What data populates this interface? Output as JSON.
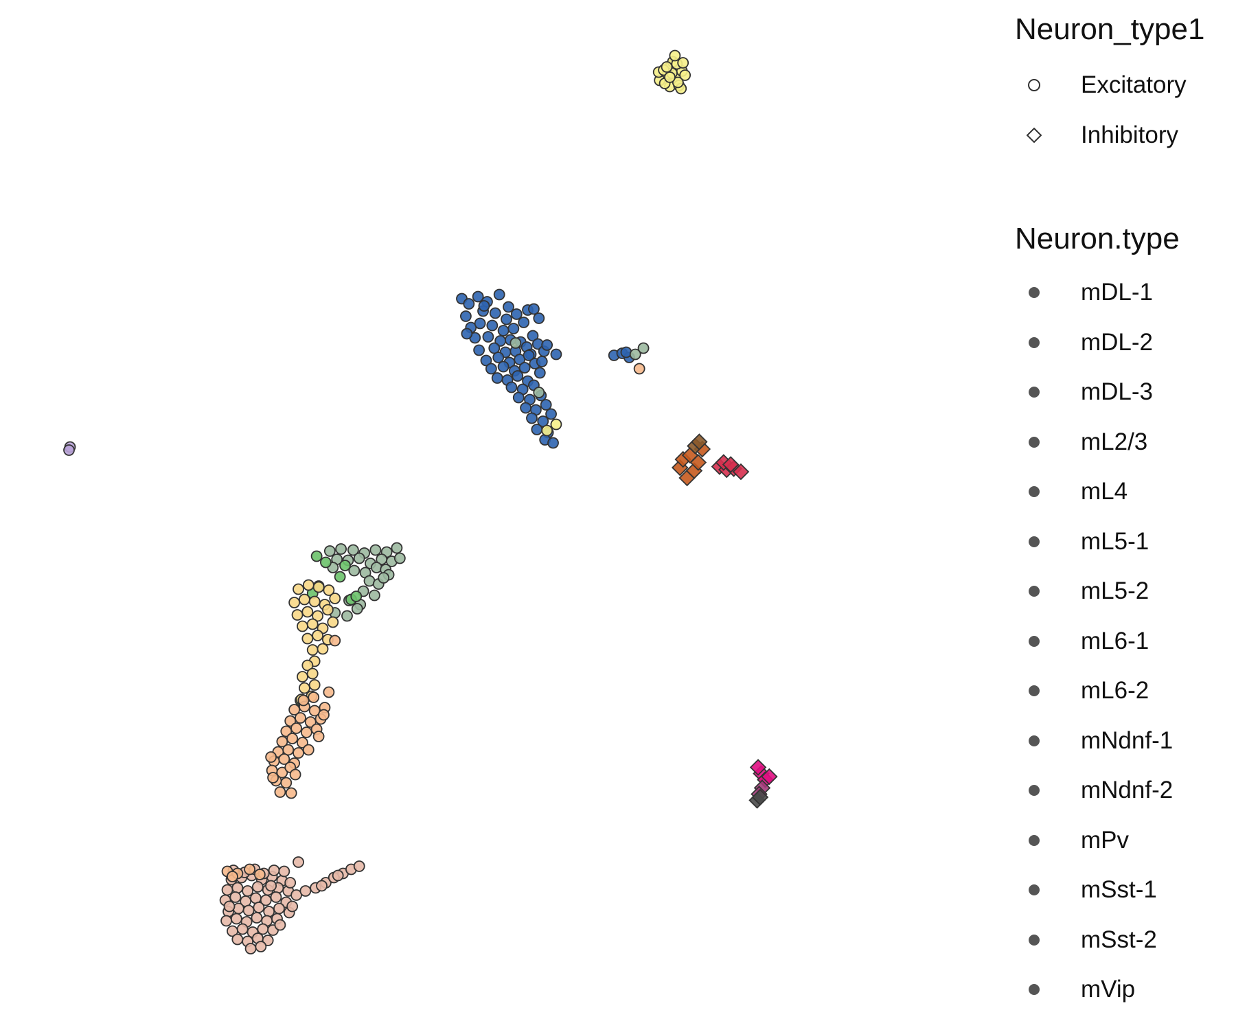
{
  "chart_data": {
    "type": "scatter",
    "title": "",
    "xlabel": "",
    "ylabel": "",
    "grid": false,
    "axes_visible": false,
    "xlim": [
      0,
      100
    ],
    "ylim": [
      0,
      100
    ],
    "legend_placement": "right",
    "point_outline_color": "#333333",
    "legend_shape": {
      "title": "Neuron_type1",
      "entries": [
        {
          "label": "Excitatory",
          "shape": "circle"
        },
        {
          "label": "Inhibitory",
          "shape": "diamond"
        }
      ]
    },
    "legend_color": {
      "title": "Neuron.type",
      "legend_key_color": "#555555",
      "entries": [
        {
          "label": "mDL-1"
        },
        {
          "label": "mDL-2"
        },
        {
          "label": "mDL-3"
        },
        {
          "label": "mL2/3"
        },
        {
          "label": "mL4"
        },
        {
          "label": "mL5-1"
        },
        {
          "label": "mL5-2"
        },
        {
          "label": "mL6-1"
        },
        {
          "label": "mL6-2"
        },
        {
          "label": "mNdnf-1"
        },
        {
          "label": "mNdnf-2"
        },
        {
          "label": "mPv"
        },
        {
          "label": "mSst-1"
        },
        {
          "label": "mSst-2"
        },
        {
          "label": "mVip"
        }
      ]
    },
    "series": [
      {
        "type": "Excitatory",
        "shape": "circle",
        "color": "#f6f08a",
        "x": [
          66.1,
          65.0,
          66.6,
          67.2,
          66.0,
          65.5,
          66.9,
          67.5,
          64.9,
          66.3,
          65.8,
          66.7,
          66.2,
          65.4,
          67.1,
          66.5,
          65.7,
          66.8,
          67.3,
          66.0
        ],
        "y": [
          93.6,
          92.2,
          92.4,
          93.1,
          91.6,
          91.9,
          91.7,
          92.7,
          93.0,
          94.0,
          92.8,
          93.8,
          92.9,
          93.2,
          91.4,
          94.6,
          93.5,
          92.0,
          93.9,
          92.5
        ]
      },
      {
        "type": "Excitatory",
        "shape": "circle",
        "color": "#2e64b0",
        "x": [
          45.5,
          46.2,
          47.1,
          48.0,
          49.2,
          50.1,
          45.9,
          47.6,
          48.8,
          49.9,
          50.9,
          52.0,
          46.4,
          47.3,
          48.5,
          49.6,
          50.6,
          51.6,
          46.8,
          48.1,
          49.3,
          50.3,
          51.3,
          52.5,
          47.2,
          48.7,
          49.8,
          50.8,
          51.9,
          53.0,
          47.9,
          49.1,
          50.2,
          51.2,
          52.3,
          48.4,
          49.6,
          50.7,
          51.7,
          52.7,
          53.6,
          49.0,
          50.0,
          51.0,
          52.0,
          53.2,
          50.4,
          51.5,
          52.6,
          51.1,
          52.2,
          53.3,
          51.8,
          52.8,
          53.8,
          52.4,
          53.5,
          54.3,
          52.9,
          54.0,
          53.7,
          54.5,
          52.1,
          53.4,
          54.8,
          53.9,
          53.1,
          52.6,
          46.0,
          47.7
        ],
        "y": [
          71.0,
          70.5,
          71.2,
          70.7,
          71.4,
          70.2,
          69.3,
          69.8,
          69.6,
          69.0,
          69.5,
          69.9,
          68.2,
          68.6,
          68.4,
          67.9,
          68.1,
          68.7,
          67.2,
          67.3,
          66.9,
          67.0,
          66.8,
          67.4,
          66.0,
          66.2,
          65.8,
          65.9,
          66.3,
          66.6,
          65.0,
          65.3,
          64.8,
          65.1,
          65.6,
          64.2,
          64.4,
          64.0,
          64.3,
          64.7,
          65.9,
          63.3,
          63.1,
          63.5,
          63.0,
          63.8,
          62.4,
          62.2,
          62.6,
          61.4,
          61.2,
          61.6,
          60.4,
          60.2,
          60.7,
          59.4,
          59.1,
          59.8,
          58.3,
          58.0,
          57.3,
          57.0,
          65.5,
          64.9,
          65.6,
          66.5,
          69.1,
          70.0,
          67.6,
          70.3
        ]
      },
      {
        "type": "Excitatory",
        "shape": "circle",
        "color": "#2e64b0",
        "x": [
          60.5,
          61.3,
          62.0,
          61.7
        ],
        "y": [
          65.5,
          65.7,
          65.3,
          65.8
        ]
      },
      {
        "type": "Excitatory",
        "shape": "circle",
        "color": "#f6f08a",
        "x": [
          54.8,
          53.9
        ],
        "y": [
          58.8,
          58.2
        ]
      },
      {
        "type": "Excitatory",
        "shape": "circle",
        "color": "#9cb9a0",
        "x": [
          50.8,
          62.6,
          63.4,
          53.1
        ],
        "y": [
          66.7,
          65.6,
          66.2,
          61.9
        ]
      },
      {
        "type": "Excitatory",
        "shape": "circle",
        "color": "#f6b98c",
        "x": [
          63.0
        ],
        "y": [
          64.2
        ]
      },
      {
        "type": "Excitatory",
        "shape": "circle",
        "color": "#b9a3d8",
        "x": [
          6.9,
          6.8
        ],
        "y": [
          56.6,
          56.3
        ]
      },
      {
        "type": "Excitatory",
        "shape": "circle",
        "color": "#9cb9a0",
        "x": [
          32.5,
          33.6,
          34.8,
          35.9,
          37.0,
          38.1,
          39.1,
          33.2,
          34.3,
          35.4,
          36.5,
          37.6,
          38.6,
          34.9,
          36.0,
          37.1,
          38.0,
          36.4,
          37.3,
          35.8,
          36.9,
          34.4,
          35.5,
          33.0,
          34.2,
          35.2,
          39.4,
          38.3,
          32.8,
          37.8
        ],
        "y": [
          46.5,
          46.7,
          46.6,
          46.3,
          46.6,
          46.4,
          46.8,
          45.7,
          45.6,
          45.8,
          45.3,
          45.7,
          45.5,
          44.6,
          44.4,
          44.9,
          44.7,
          43.6,
          43.3,
          42.6,
          42.2,
          41.7,
          41.3,
          40.5,
          40.2,
          40.9,
          45.8,
          44.2,
          44.9,
          43.9
        ]
      },
      {
        "type": "Excitatory",
        "shape": "circle",
        "color": "#6cc26a",
        "x": [
          31.2,
          32.1,
          33.5,
          34.6,
          30.8,
          35.1,
          34.0,
          29.6,
          31.4
        ],
        "y": [
          46.0,
          45.4,
          44.0,
          41.8,
          42.4,
          42.1,
          45.1,
          32.0,
          43.1
        ]
      },
      {
        "type": "Excitatory",
        "shape": "circle",
        "color": "#f8d887",
        "x": [
          29.4,
          30.4,
          31.4,
          32.4,
          29.0,
          30.0,
          31.0,
          32.0,
          33.0,
          29.3,
          30.3,
          31.3,
          32.3,
          29.8,
          30.8,
          31.8,
          32.8,
          30.3,
          31.3,
          32.3,
          30.8,
          31.8,
          31.0,
          30.3,
          29.8,
          30.8,
          30.0,
          31.0,
          29.7,
          30.7
        ],
        "y": [
          42.8,
          43.2,
          43.0,
          42.7,
          41.5,
          41.8,
          41.6,
          41.3,
          41.9,
          40.3,
          40.6,
          40.2,
          40.8,
          39.2,
          39.4,
          39.0,
          39.6,
          38.0,
          38.3,
          37.9,
          36.9,
          37.0,
          35.8,
          35.4,
          34.3,
          34.6,
          33.2,
          33.5,
          32.1,
          32.4
        ]
      },
      {
        "type": "Excitatory",
        "shape": "circle",
        "color": "#f6b98c",
        "x": [
          29.0,
          30.0,
          31.0,
          32.0,
          28.6,
          29.6,
          30.6,
          31.6,
          28.2,
          29.2,
          30.2,
          31.2,
          27.8,
          28.8,
          29.8,
          27.4,
          28.4,
          29.4,
          27.0,
          28.0,
          29.0,
          26.8,
          27.8,
          28.6,
          27.2,
          28.2,
          27.6,
          28.7,
          29.9,
          30.9,
          31.9,
          32.4,
          26.7,
          29.1,
          30.4,
          31.4,
          26.9,
          33.0
        ],
        "y": [
          31.1,
          31.4,
          31.0,
          31.3,
          30.0,
          30.3,
          29.9,
          30.2,
          29.0,
          29.3,
          28.9,
          29.2,
          28.0,
          28.3,
          27.9,
          27.0,
          27.2,
          26.9,
          26.1,
          26.3,
          25.9,
          25.2,
          25.0,
          25.5,
          24.2,
          24.0,
          23.1,
          23.0,
          32.0,
          32.3,
          30.6,
          32.8,
          26.5,
          24.8,
          27.2,
          28.5,
          24.5,
          37.8
        ]
      },
      {
        "type": "Excitatory",
        "shape": "circle",
        "color": "#e7b9a8",
        "x": [
          22.8,
          23.8,
          24.8,
          25.8,
          26.8,
          27.8,
          22.4,
          23.4,
          24.4,
          25.4,
          26.4,
          27.4,
          28.4,
          22.2,
          23.2,
          24.2,
          25.2,
          26.2,
          27.2,
          28.2,
          22.5,
          23.5,
          24.5,
          25.5,
          26.5,
          27.5,
          28.5,
          22.3,
          23.3,
          24.3,
          25.3,
          26.3,
          27.3,
          22.9,
          23.9,
          24.9,
          25.9,
          26.9,
          23.4,
          24.4,
          25.4,
          26.4,
          27.6,
          28.8,
          29.2,
          23.0,
          24.1,
          25.1,
          26.0,
          27.0,
          28.0,
          22.6,
          24.7,
          25.7,
          26.7,
          28.6
        ],
        "y": [
          14.6,
          14.8,
          15.0,
          14.6,
          14.9,
          14.5,
          13.6,
          13.8,
          13.5,
          13.9,
          13.6,
          13.8,
          13.5,
          12.6,
          12.9,
          12.5,
          12.8,
          12.6,
          12.9,
          12.4,
          11.5,
          11.8,
          11.6,
          11.9,
          11.5,
          11.8,
          11.4,
          10.6,
          10.8,
          10.5,
          10.9,
          10.6,
          10.8,
          9.6,
          9.8,
          9.5,
          9.8,
          9.7,
          8.8,
          8.6,
          8.9,
          8.7,
          10.2,
          12.0,
          13.1,
          15.5,
          15.3,
          15.6,
          15.2,
          15.5,
          15.4,
          12.0,
          7.9,
          8.1,
          14.0,
          14.3
        ]
      },
      {
        "type": "Excitatory",
        "shape": "circle",
        "color": "#f6b98c",
        "x": [
          22.4,
          23.4,
          24.6,
          25.6,
          22.9
        ],
        "y": [
          15.4,
          15.2,
          15.6,
          15.1,
          14.9
        ]
      },
      {
        "type": "Excitatory",
        "shape": "circle",
        "color": "#e7b9a8",
        "x": [
          30.1,
          31.1,
          32.1,
          32.9,
          33.8,
          34.6,
          35.4,
          29.4,
          31.7,
          33.3
        ],
        "y": [
          13.5,
          13.8,
          14.3,
          14.8,
          15.2,
          15.6,
          15.9,
          16.3,
          14.0,
          15.0
        ]
      },
      {
        "type": "Inhibitory",
        "shape": "diamond",
        "color": "#c65a1e",
        "x": [
          67.0,
          67.7,
          68.4,
          67.3,
          68.0,
          68.8,
          69.2
        ],
        "y": [
          54.6,
          53.6,
          54.3,
          55.4,
          55.8,
          55.1,
          56.4
        ]
      },
      {
        "type": "Inhibitory",
        "shape": "diamond",
        "color": "#8b5a2b",
        "x": [
          68.5,
          68.9
        ],
        "y": [
          56.7,
          57.1
        ]
      },
      {
        "type": "Inhibitory",
        "shape": "diamond",
        "color": "#d6304f",
        "x": [
          70.9,
          71.6,
          72.3,
          73.0,
          71.3,
          72.0
        ],
        "y": [
          54.7,
          54.4,
          54.5,
          54.2,
          55.1,
          54.9
        ]
      },
      {
        "type": "Inhibitory",
        "shape": "diamond",
        "color": "#e00e82",
        "x": [
          75.0,
          75.4,
          74.7,
          75.8
        ],
        "y": [
          24.9,
          24.3,
          25.5,
          24.6
        ]
      },
      {
        "type": "Inhibitory",
        "shape": "diamond",
        "color": "#a33b7a",
        "x": [
          75.1,
          74.8
        ],
        "y": [
          23.5,
          22.9
        ]
      },
      {
        "type": "Inhibitory",
        "shape": "diamond",
        "color": "#4a4a4a",
        "x": [
          74.6,
          74.9
        ],
        "y": [
          22.3,
          22.6
        ]
      }
    ]
  }
}
